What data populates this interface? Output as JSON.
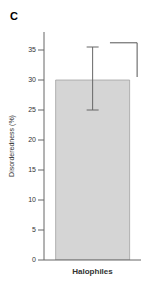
{
  "chart_data": {
    "type": "bar",
    "title": "C",
    "categories": [
      "Halophiles"
    ],
    "values": [
      30.0
    ],
    "error_low": [
      5.0
    ],
    "error_high": [
      5.5
    ],
    "color": "#d5d5d5",
    "ylabel": "Disorderedness (%)",
    "ylim": [
      0,
      38
    ],
    "yticks": [
      0,
      5,
      10,
      15,
      20,
      25,
      30,
      35
    ],
    "bracket": {
      "y_top": 36.2,
      "y_bottom": 30.5
    }
  }
}
